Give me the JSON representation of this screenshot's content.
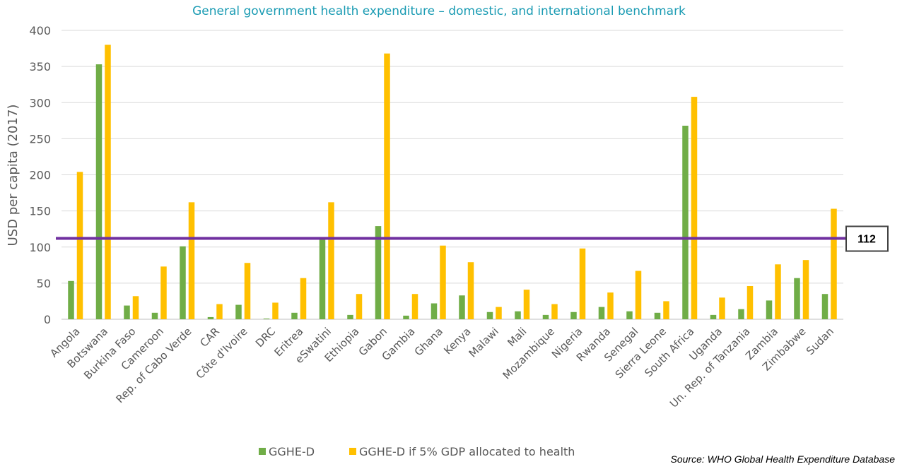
{
  "chart_data": {
    "type": "bar",
    "title": "General government health expenditure – domestic, and international benchmark",
    "ylabel": "USD per capita (2017)",
    "xlabel": "",
    "ylim": [
      0,
      400
    ],
    "yticks": [
      0,
      50,
      100,
      150,
      200,
      250,
      300,
      350,
      400
    ],
    "grid": true,
    "legend_position": "bottom",
    "categories": [
      "Angola",
      "Botswana",
      "Burkina Faso",
      "Cameroon",
      "Rep. of Cabo Verde",
      "CAR",
      "Côte d'Ivoire",
      "DRC",
      "Eritrea",
      "eSwatini",
      "Ethiopia",
      "Gabon",
      "Gambia",
      "Ghana",
      "Kenya",
      "Malawi",
      "Mali",
      "Mozambique",
      "Nigeria",
      "Rwanda",
      "Senegal",
      "Sierra Leone",
      "South Africa",
      "Uganda",
      "Un. Rep. of Tanzania",
      "Zambia",
      "Zimbabwe",
      "Sudan"
    ],
    "series": [
      {
        "name": "GGHE-D",
        "color": "#70ad47",
        "values": [
          53,
          353,
          19,
          9,
          101,
          3,
          20,
          1,
          9,
          112,
          6,
          129,
          5,
          22,
          33,
          10,
          11,
          6,
          10,
          17,
          11,
          9,
          268,
          6,
          14,
          26,
          57,
          35
        ]
      },
      {
        "name": "GGHE-D if 5% GDP allocated to health",
        "color": "#ffc000",
        "values": [
          204,
          380,
          32,
          73,
          162,
          21,
          78,
          23,
          57,
          162,
          35,
          368,
          35,
          102,
          79,
          17,
          41,
          21,
          98,
          37,
          67,
          25,
          308,
          30,
          46,
          76,
          82,
          153
        ]
      }
    ],
    "benchmark": {
      "value": 112,
      "label": "112",
      "color": "#7030a0"
    }
  },
  "source": "Source: WHO Global Health Expenditure Database"
}
